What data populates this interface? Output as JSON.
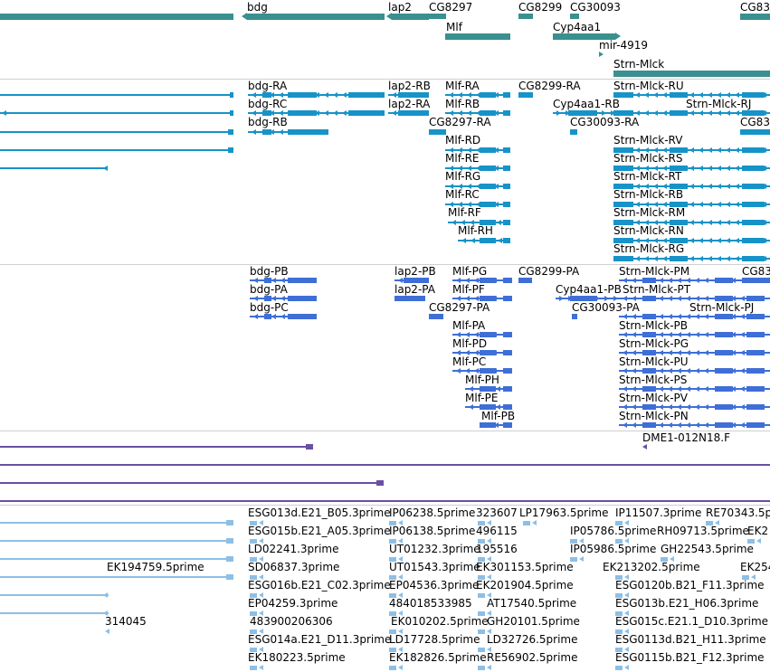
{
  "colors": {
    "gene": "#3a8f8f",
    "transcript": "#1793c8",
    "protein": "#3f6fd6",
    "clone": "#6a4fa3",
    "est": "#8dbfe6"
  },
  "gene_track": {
    "labels": [
      {
        "text": "bdg"
      },
      {
        "text": "lap2"
      },
      {
        "text": "CG8297"
      },
      {
        "text": "CG8299"
      },
      {
        "text": "CG30093"
      },
      {
        "text": "CG83"
      },
      {
        "text": "Mlf"
      },
      {
        "text": "Cyp4aa1"
      },
      {
        "text": "mir-4919"
      },
      {
        "text": "Strn-Mlck"
      }
    ]
  },
  "transcript_track": {
    "labels": [
      {
        "text": "bdg-RA"
      },
      {
        "text": "lap2-RB"
      },
      {
        "text": "Mlf-RA"
      },
      {
        "text": "CG8299-RA"
      },
      {
        "text": "Strn-Mlck-RU"
      },
      {
        "text": "bdg-RC"
      },
      {
        "text": "lap2-RA"
      },
      {
        "text": "Mlf-RB"
      },
      {
        "text": "Cyp4aa1-RB"
      },
      {
        "text": "Strn-Mlck-RJ"
      },
      {
        "text": "bdg-RB"
      },
      {
        "text": "CG8297-RA"
      },
      {
        "text": "CG30093-RA"
      },
      {
        "text": "CG83"
      },
      {
        "text": "Mlf-RD"
      },
      {
        "text": "Strn-Mlck-RV"
      },
      {
        "text": "Mlf-RE"
      },
      {
        "text": "Strn-Mlck-RS"
      },
      {
        "text": "Mlf-RG"
      },
      {
        "text": "Strn-Mlck-RT"
      },
      {
        "text": "Mlf-RC"
      },
      {
        "text": "Strn-Mlck-RB"
      },
      {
        "text": "Mlf-RF"
      },
      {
        "text": "Strn-Mlck-RM"
      },
      {
        "text": "Mlf-RH"
      },
      {
        "text": "Strn-Mlck-RN"
      },
      {
        "text": "Strn-Mlck-RG"
      }
    ]
  },
  "protein_track": {
    "labels": [
      {
        "text": "bdg-PB"
      },
      {
        "text": "lap2-PB"
      },
      {
        "text": "Mlf-PG"
      },
      {
        "text": "CG8299-PA"
      },
      {
        "text": "Strn-Mlck-PM"
      },
      {
        "text": "CG83"
      },
      {
        "text": "bdg-PA"
      },
      {
        "text": "lap2-PA"
      },
      {
        "text": "Mlf-PF"
      },
      {
        "text": "Cyp4aa1-PB"
      },
      {
        "text": "Strn-Mlck-PT"
      },
      {
        "text": "bdg-PC"
      },
      {
        "text": "CG8297-PA"
      },
      {
        "text": "CG30093-PA"
      },
      {
        "text": "Strn-Mlck-PJ"
      },
      {
        "text": "Mlf-PA"
      },
      {
        "text": "Strn-Mlck-PB"
      },
      {
        "text": "Mlf-PD"
      },
      {
        "text": "Strn-Mlck-PG"
      },
      {
        "text": "Mlf-PC"
      },
      {
        "text": "Strn-Mlck-PU"
      },
      {
        "text": "Mlf-PH"
      },
      {
        "text": "Strn-Mlck-PS"
      },
      {
        "text": "Mlf-PE"
      },
      {
        "text": "Strn-Mlck-PV"
      },
      {
        "text": "Mlf-PB"
      },
      {
        "text": "Strn-Mlck-PN"
      }
    ]
  },
  "clone_track": {
    "labels": [
      {
        "text": "DME1-012N18.F"
      }
    ]
  },
  "est_track": {
    "labels": [
      {
        "text": "ESG013d.E21_B05.3prime"
      },
      {
        "text": "IP06238.5prime"
      },
      {
        "text": "323607"
      },
      {
        "text": "LP17963.5prime"
      },
      {
        "text": "IP11507.3prime"
      },
      {
        "text": "RE70343.5p"
      },
      {
        "text": "ESG015b.E21_A05.3prime"
      },
      {
        "text": "IP06138.5prime"
      },
      {
        "text": "496115"
      },
      {
        "text": "IP05786.5prime"
      },
      {
        "text": "RH09713.5prime"
      },
      {
        "text": "EK2"
      },
      {
        "text": "LD02241.3prime"
      },
      {
        "text": "UT01232.3prime"
      },
      {
        "text": "195516"
      },
      {
        "text": "IP05986.5prime"
      },
      {
        "text": "GH22543.5prime"
      },
      {
        "text": "EK194759.5prime"
      },
      {
        "text": "SD06837.3prime"
      },
      {
        "text": "UT01543.3prime"
      },
      {
        "text": "EK301153.5prime"
      },
      {
        "text": "EK213202.5prime"
      },
      {
        "text": "EK254"
      },
      {
        "text": "ESG016b.E21_C02.3prime"
      },
      {
        "text": "EP04536.3prime"
      },
      {
        "text": "EK201904.5prime"
      },
      {
        "text": "ESG0120b.B21_F11.3prime"
      },
      {
        "text": "EP04259.3prime"
      },
      {
        "text": "484018533985"
      },
      {
        "text": "AT17540.5prime"
      },
      {
        "text": "ESG013b.E21_H06.3prime"
      },
      {
        "text": "314045"
      },
      {
        "text": "483900206306"
      },
      {
        "text": "EK010202.5prime"
      },
      {
        "text": "GH20101.5prime"
      },
      {
        "text": "ESG015c.E21.1_D10.3prime"
      },
      {
        "text": "ESG014a.E21_D11.3prime"
      },
      {
        "text": "LD17728.5prime"
      },
      {
        "text": "LD32726.5prime"
      },
      {
        "text": "ESG0113d.B21_H11.3prime"
      },
      {
        "text": "EK180223.5prime"
      },
      {
        "text": "EK182826.5prime"
      },
      {
        "text": "RE56902.5prime"
      },
      {
        "text": "ESG0115b.B21_F12.3prime"
      }
    ]
  }
}
